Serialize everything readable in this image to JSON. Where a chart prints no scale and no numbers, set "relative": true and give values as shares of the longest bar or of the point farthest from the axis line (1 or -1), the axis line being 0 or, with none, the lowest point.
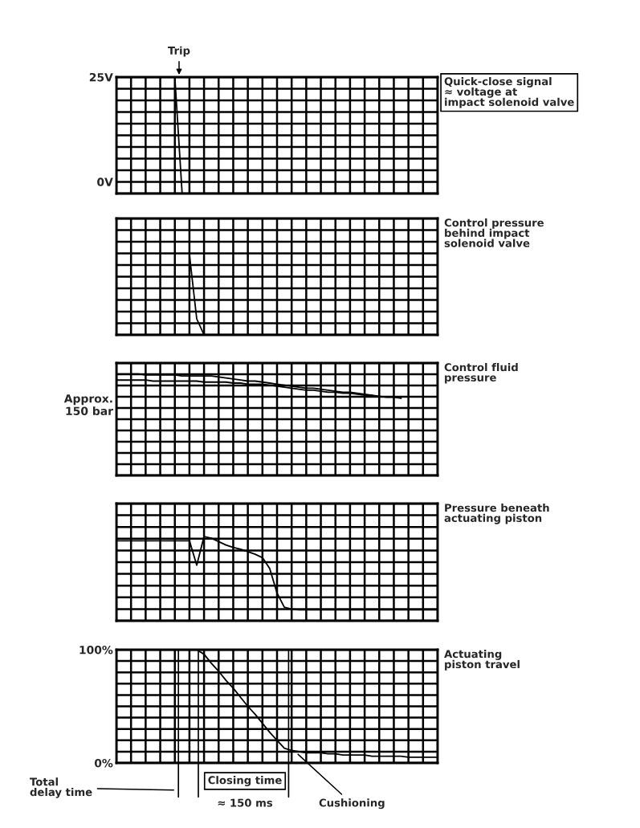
{
  "chart_data": [
    {
      "type": "line",
      "categories": [
        null,
        null,
        null,
        null,
        null,
        null,
        null,
        null,
        null,
        null,
        null,
        null,
        null,
        null,
        null,
        null,
        null,
        null,
        null,
        null,
        null,
        null,
        null,
        null,
        null,
        null,
        null,
        null,
        null,
        null,
        null,
        null,
        null,
        null,
        null,
        null,
        null,
        null,
        null,
        null,
        null,
        null,
        null,
        null,
        null
      ],
      "ylim": [
        -2.8,
        25
      ],
      "yticks": [
        {
          "value": -2.8,
          "label": null
        },
        {
          "value": 0,
          "label": "0V"
        },
        {
          "value": 2.78,
          "label": null
        },
        {
          "value": 5.56,
          "label": null
        },
        {
          "value": 8.33,
          "label": null
        },
        {
          "value": 11.11,
          "label": null
        },
        {
          "value": 13.89,
          "label": null
        },
        {
          "value": 16.67,
          "label": null
        },
        {
          "value": 19.44,
          "label": null
        },
        {
          "value": 22.22,
          "label": null
        },
        {
          "value": 25,
          "label": "25V"
        }
      ],
      "grid": true,
      "tick_labels": "y",
      "series": [
        {
          "color": "#000000",
          "values": [
            25,
            25,
            25,
            25,
            25,
            25,
            25,
            25,
            25,
            -2.8,
            -2.8,
            -2.8,
            -2.8,
            -2.8,
            -2.8,
            -2.8,
            -2.8,
            -2.8,
            -2.8,
            -2.8,
            -2.8,
            -2.8,
            -2.8,
            -2.8,
            -2.8,
            -2.8,
            -2.8,
            -2.8,
            -2.8,
            -2.8,
            -2.8,
            -2.8,
            -2.8,
            -2.8,
            -2.8,
            -2.8,
            -2.8,
            -2.8,
            -2.8,
            -2.8,
            -2.8,
            -2.8,
            -2.8,
            -2.8,
            -2.8
          ]
        }
      ],
      "annotations": [
        "Trip",
        "Quick-close signal\n≈ voltage at\nimpact solenoid valve"
      ]
    },
    {
      "type": "line",
      "annotations": [
        "Control pressure\nbehind impact\nsolenoid valve"
      ],
      "categories": [
        null,
        null,
        null,
        null,
        null,
        null,
        null,
        null,
        null,
        null,
        null,
        null,
        null,
        null,
        null,
        null,
        null,
        null,
        null,
        null,
        null,
        null,
        null,
        null,
        null,
        null,
        null,
        null,
        null,
        null,
        null,
        null,
        null,
        null,
        null,
        null,
        null,
        null,
        null,
        null,
        null,
        null,
        null,
        null,
        null
      ],
      "relative": true,
      "grid": true,
      "tick_labels": false,
      "series": [
        {
          "color": "#000000",
          "values": [
            null,
            null,
            null,
            null,
            null,
            null,
            null,
            null,
            null,
            null,
            1,
            0.2,
            0,
            0,
            0,
            0,
            0,
            0,
            0,
            0,
            0,
            0,
            0,
            0,
            0,
            0,
            0,
            0,
            0,
            0,
            0,
            0,
            0,
            0,
            0,
            0,
            0,
            0,
            0,
            0,
            0,
            0,
            0,
            0,
            0
          ]
        }
      ]
    },
    {
      "type": "line",
      "annotations": [
        "Control fluid\npressure"
      ],
      "ylabel": "Approx.\n150 bar",
      "categories": [
        null,
        null,
        null,
        null,
        null,
        null,
        null,
        null,
        null,
        null,
        null,
        null,
        null,
        null,
        null,
        null,
        null,
        null,
        null,
        null,
        null,
        null,
        null,
        null,
        null,
        null,
        null,
        null,
        null,
        null,
        null,
        null,
        null,
        null,
        null,
        null,
        null,
        null,
        null,
        null,
        null,
        null,
        null,
        null,
        null
      ],
      "relative": true,
      "grid": true,
      "tick_labels": false,
      "series": [
        {
          "color": "#000000",
          "values": [
            1,
            1,
            1,
            1,
            0.99,
            0.99,
            0.99,
            0.99,
            0.99,
            0.98,
            0.98,
            0.98,
            0.98,
            0.98,
            0.97,
            0.96,
            0.95,
            0.94,
            0.93,
            0.93,
            0.92,
            0.91,
            0.9,
            0.89,
            0.88,
            0.87,
            0.86,
            0.86,
            0.85,
            0.84,
            0.83,
            0.82,
            0.82,
            0.81,
            0.8,
            0.79,
            null,
            null,
            null,
            null,
            null,
            null,
            null,
            null,
            null
          ]
        },
        {
          "color": "#000000",
          "values": [
            0.94,
            0.94,
            0.94,
            0.94,
            0.94,
            0.93,
            0.93,
            0.93,
            0.93,
            0.93,
            0.93,
            0.93,
            0.92,
            0.92,
            0.92,
            0.92,
            0.91,
            0.91,
            0.9,
            0.9,
            0.9,
            0.89,
            0.88,
            0.87,
            0.86,
            0.85,
            0.84,
            0.84,
            0.83,
            0.82,
            0.82,
            0.81,
            0.81,
            0.8,
            0.79,
            0.79,
            0.78,
            0.77,
            0.77,
            0.76,
            null,
            null,
            null,
            null,
            null
          ]
        }
      ]
    },
    {
      "type": "line",
      "annotations": [
        "Pressure beneath\nactuating piston"
      ],
      "categories": [
        null,
        null,
        null,
        null,
        null,
        null,
        null,
        null,
        null,
        null,
        null,
        null,
        null,
        null,
        null,
        null,
        null,
        null,
        null,
        null,
        null,
        null,
        null,
        null,
        null,
        null,
        null,
        null,
        null,
        null,
        null,
        null,
        null,
        null,
        null,
        null,
        null,
        null,
        null,
        null,
        null,
        null,
        null,
        null,
        null
      ],
      "relative": true,
      "grid": true,
      "tick_labels": false,
      "series": [
        {
          "color": "#000000",
          "values": [
            0.95,
            0.95,
            0.95,
            0.95,
            0.95,
            0.95,
            0.95,
            0.95,
            0.95,
            0.95,
            0.95,
            0.66,
            1,
            0.98,
            0.94,
            0.9,
            0.87,
            0.85,
            0.82,
            0.79,
            0.75,
            0.62,
            0.33,
            0.16,
            0.14,
            0.13,
            0.13,
            0.13,
            0.13,
            0.13,
            0.13,
            0.13,
            0.13,
            0.13,
            0.13,
            0.13,
            0.13,
            0.13,
            0.13,
            0.13,
            0.13,
            0.13,
            0.13,
            0.13,
            0.13
          ]
        }
      ]
    },
    {
      "type": "line",
      "categories": [
        null,
        null,
        null,
        null,
        null,
        null,
        null,
        null,
        null,
        null,
        null,
        null,
        null,
        null,
        null,
        null,
        null,
        null,
        null,
        null,
        null,
        null,
        null,
        null,
        null,
        null,
        null,
        null,
        null,
        null,
        null,
        null,
        null,
        null,
        null,
        null,
        null,
        null,
        null,
        null,
        null,
        null,
        null,
        null,
        null
      ],
      "ylim": [
        0,
        100
      ],
      "yticks": [
        {
          "value": 0,
          "label": "0%"
        },
        {
          "value": 10,
          "label": null
        },
        {
          "value": 20,
          "label": null
        },
        {
          "value": 30,
          "label": null
        },
        {
          "value": 40,
          "label": null
        },
        {
          "value": 50,
          "label": null
        },
        {
          "value": 60,
          "label": null
        },
        {
          "value": 70,
          "label": null
        },
        {
          "value": 80,
          "label": null
        },
        {
          "value": 90,
          "label": null
        },
        {
          "value": 100,
          "label": "100%"
        }
      ],
      "grid": true,
      "tick_labels": "y",
      "series": [
        {
          "color": "#000000",
          "values": [
            100,
            100,
            100,
            100,
            100,
            100,
            100,
            100,
            100,
            100,
            100,
            100,
            96,
            88,
            81,
            73,
            66,
            58,
            50,
            43,
            35,
            27,
            20,
            13,
            11,
            10,
            9,
            9,
            9,
            8,
            8,
            7,
            7,
            7,
            7,
            6,
            6,
            6,
            6,
            6,
            5,
            5,
            5,
            5,
            5
          ]
        }
      ],
      "annotations": [
        "Total\ndelay time",
        "Closing time",
        "≈ 150 ms",
        "Cushioning",
        "Actuating\npiston travel"
      ]
    }
  ]
}
